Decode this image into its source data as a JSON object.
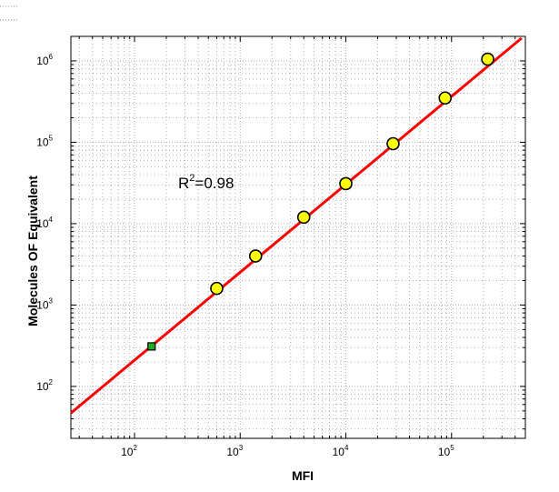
{
  "chart_data": {
    "type": "scatter",
    "xlabel": "MFI",
    "ylabel": "Molecules OF Equivalent",
    "xscale": "log",
    "yscale": "log",
    "xlim": [
      25,
      500000
    ],
    "ylim": [
      23,
      2000000
    ],
    "grid": true,
    "x_ticks": [
      100,
      1000,
      10000,
      100000
    ],
    "y_ticks": [
      100,
      1000,
      10000,
      100000,
      1000000
    ],
    "x_tick_labels": [
      {
        "base": "10",
        "exp": "2"
      },
      {
        "base": "10",
        "exp": "3"
      },
      {
        "base": "10",
        "exp": "4"
      },
      {
        "base": "10",
        "exp": "5"
      }
    ],
    "y_tick_labels": [
      {
        "base": "10",
        "exp": "2"
      },
      {
        "base": "10",
        "exp": "3"
      },
      {
        "base": "10",
        "exp": "4"
      },
      {
        "base": "10",
        "exp": "5"
      },
      {
        "base": "10",
        "exp": "6"
      }
    ],
    "annotation": {
      "prefix": "R",
      "exp": "2",
      "suffix": "=0.98"
    },
    "series": [
      {
        "marker": "circle",
        "color": "#ffff00",
        "points": [
          {
            "x": 600,
            "y": 1600
          },
          {
            "x": 1400,
            "y": 4000
          },
          {
            "x": 4000,
            "y": 12000
          },
          {
            "x": 10000,
            "y": 31000
          },
          {
            "x": 28000,
            "y": 96000
          },
          {
            "x": 87000,
            "y": 350000
          },
          {
            "x": 220000,
            "y": 1050000
          }
        ]
      },
      {
        "marker": "square",
        "color": "#22aa22",
        "points": [
          {
            "x": 145,
            "y": 310
          }
        ]
      }
    ],
    "fit_line": {
      "color": "#ff0000",
      "x": [
        25,
        460000
      ],
      "y": [
        47,
        1900000
      ]
    }
  }
}
